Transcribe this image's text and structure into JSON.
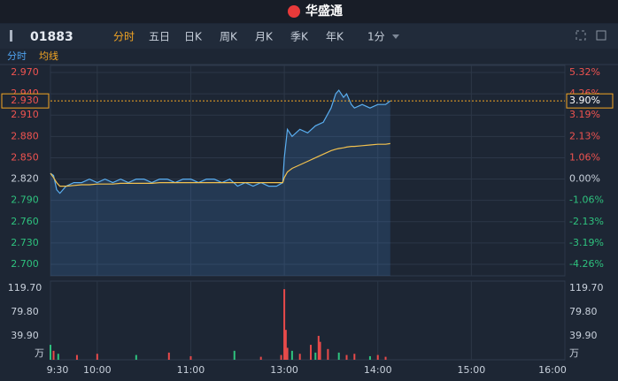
{
  "header": {
    "logo": "华盛通"
  },
  "toolbar": {
    "code": "01883",
    "tabs": [
      "分时",
      "五日",
      "日K",
      "周K",
      "月K",
      "季K",
      "年K",
      "1分"
    ],
    "active_tab": 0
  },
  "subtabs": [
    "分时",
    "均线"
  ],
  "chart_data": [
    {
      "type": "line",
      "x": [
        0,
        2,
        4,
        6,
        10,
        15,
        20,
        25,
        30,
        35,
        40,
        45,
        50,
        55,
        60,
        65,
        70,
        75,
        80,
        85,
        90,
        95,
        100,
        105,
        110,
        115,
        120,
        125,
        130,
        135,
        140,
        145,
        149,
        150,
        152,
        155,
        160,
        165,
        170,
        175,
        180,
        183,
        185,
        188,
        190,
        193,
        195,
        200,
        205,
        210,
        215,
        218
      ],
      "xlim": [
        0,
        330
      ],
      "xticks": [
        {
          "value": 0,
          "label": "9:30"
        },
        {
          "value": 30,
          "label": "10:00"
        },
        {
          "value": 90,
          "label": "11:00"
        },
        {
          "value": 150,
          "label": "13:00"
        },
        {
          "value": 210,
          "label": "14:00"
        },
        {
          "value": 270,
          "label": "15:00"
        },
        {
          "value": 330,
          "label": "16:00"
        }
      ],
      "series": [
        {
          "name": "分时",
          "color": "#5aaef0",
          "values": [
            2.828,
            2.825,
            2.805,
            2.8,
            2.81,
            2.815,
            2.815,
            2.82,
            2.815,
            2.82,
            2.815,
            2.82,
            2.815,
            2.82,
            2.82,
            2.815,
            2.82,
            2.82,
            2.815,
            2.82,
            2.82,
            2.815,
            2.82,
            2.82,
            2.815,
            2.82,
            2.81,
            2.815,
            2.81,
            2.815,
            2.81,
            2.81,
            2.815,
            2.85,
            2.89,
            2.88,
            2.89,
            2.885,
            2.895,
            2.9,
            2.92,
            2.94,
            2.945,
            2.935,
            2.94,
            2.925,
            2.92,
            2.925,
            2.92,
            2.925,
            2.925,
            2.93
          ]
        },
        {
          "name": "均线",
          "color": "#f2c14e",
          "values": [
            2.828,
            2.822,
            2.815,
            2.81,
            2.81,
            2.811,
            2.812,
            2.812,
            2.813,
            2.813,
            2.813,
            2.814,
            2.814,
            2.814,
            2.814,
            2.814,
            2.815,
            2.815,
            2.815,
            2.815,
            2.815,
            2.815,
            2.815,
            2.815,
            2.815,
            2.815,
            2.815,
            2.815,
            2.815,
            2.815,
            2.815,
            2.815,
            2.815,
            2.822,
            2.83,
            2.835,
            2.84,
            2.845,
            2.85,
            2.855,
            2.86,
            2.862,
            2.863,
            2.864,
            2.865,
            2.866,
            2.866,
            2.867,
            2.868,
            2.869,
            2.869,
            2.87
          ]
        }
      ],
      "ylim": [
        2.7,
        2.97
      ],
      "yticks": [
        {
          "value": 2.97,
          "label": "2.970"
        },
        {
          "value": 2.94,
          "label": "2.940"
        },
        {
          "value": 2.91,
          "label": "2.910"
        },
        {
          "value": 2.88,
          "label": "2.880"
        },
        {
          "value": 2.85,
          "label": "2.850"
        },
        {
          "value": 2.82,
          "label": "2.820"
        },
        {
          "value": 2.79,
          "label": "2.790"
        },
        {
          "value": 2.76,
          "label": "2.760"
        },
        {
          "value": 2.73,
          "label": "2.730"
        },
        {
          "value": 2.7,
          "label": "2.700"
        }
      ],
      "y2lim": [
        -4.26,
        5.32
      ],
      "y2ticks": [
        {
          "value": 5.32,
          "label": "5.32%"
        },
        {
          "value": 4.26,
          "label": "4.26%"
        },
        {
          "value": 3.19,
          "label": "3.19%"
        },
        {
          "value": 2.13,
          "label": "2.13%"
        },
        {
          "value": 1.06,
          "label": "1.06%"
        },
        {
          "value": 0,
          "label": "0.00%"
        },
        {
          "value": -1.06,
          "label": "-1.06%"
        },
        {
          "value": -2.13,
          "label": "-2.13%"
        },
        {
          "value": -3.19,
          "label": "-3.19%"
        },
        {
          "value": -4.26,
          "label": "-4.26%"
        }
      ],
      "last_price": {
        "value": 2.93,
        "label": "2.930"
      },
      "last_change": {
        "value": 3.9,
        "label": "3.90%"
      },
      "grid": true
    },
    {
      "type": "bar",
      "unit": "万",
      "x": [
        0,
        2,
        5,
        17,
        30,
        55,
        76,
        90,
        118,
        135,
        148,
        150,
        151,
        152,
        155,
        160,
        167,
        170,
        172,
        173,
        178,
        185,
        190,
        195,
        205,
        210,
        215
      ],
      "values": [
        25,
        15,
        10,
        8,
        10,
        8,
        12,
        6,
        15,
        5,
        8,
        118,
        50,
        20,
        15,
        10,
        25,
        12,
        40,
        30,
        18,
        12,
        8,
        10,
        6,
        8,
        5
      ],
      "colors": [
        "#2ec27e",
        "#e84a4a",
        "#2ec27e",
        "#e84a4a",
        "#e84a4a",
        "#2ec27e",
        "#e84a4a",
        "#e84a4a",
        "#2ec27e",
        "#e84a4a",
        "#e84a4a",
        "#e84a4a",
        "#e84a4a",
        "#e84a4a",
        "#2ec27e",
        "#e84a4a",
        "#e84a4a",
        "#2ec27e",
        "#e84a4a",
        "#e84a4a",
        "#e84a4a",
        "#2ec27e",
        "#e84a4a",
        "#e84a4a",
        "#2ec27e",
        "#e84a4a",
        "#e84a4a"
      ],
      "ylim": [
        0,
        131.5
      ],
      "yticks": [
        {
          "value": 119.7,
          "label": "119.70"
        },
        {
          "value": 79.8,
          "label": "79.80"
        },
        {
          "value": 39.9,
          "label": "39.90"
        }
      ]
    }
  ]
}
